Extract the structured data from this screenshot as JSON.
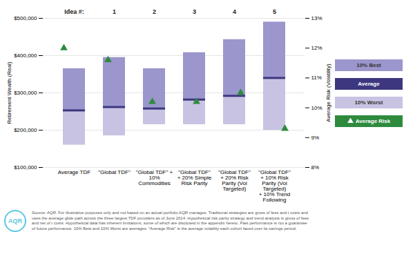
{
  "chart_data": {
    "type": "range_bar",
    "categories": [
      "Average TDF",
      "\"Global TDF\"",
      "\"Global TDF\" +\n10%\nCommodities",
      "\"Global TDF\"\n+ 20% Simple\nRisk Parity",
      "\"Global TDF\"\n+ 20% Risk\nParity (Vol\nTargeted)",
      "\"Global TDF\"\n+ 10% Risk\nParity (Vol\nTargeted)\n+ 10% Trend\nFollowing"
    ],
    "series": [
      {
        "name": "10% Worst",
        "color": "#c8c3e2",
        "values": [
          160000,
          185000,
          215000,
          215000,
          215000,
          200000
        ]
      },
      {
        "name": "Average",
        "color": "#3d3780",
        "values": [
          253000,
          262000,
          258000,
          282000,
          292000,
          340000
        ]
      },
      {
        "name": "10% Best",
        "color": "#9b96cc",
        "values": [
          365000,
          395000,
          365000,
          408000,
          443000,
          490000
        ]
      },
      {
        "name": "Average Risk",
        "axis": "y2",
        "type": "scatter",
        "marker": "triangle",
        "color": "#2e8b3e",
        "values": [
          12.0,
          11.6,
          10.2,
          10.2,
          10.5,
          9.3
        ]
      }
    ],
    "idea_numbers": [
      null,
      1,
      2,
      3,
      4,
      5
    ],
    "ylabel": "Retirement Wealth (Real)",
    "y2label": "Average Risk (Volatility)",
    "ylim": [
      100000,
      500000
    ],
    "yticks": [
      {
        "value": 100000,
        "label": "$100,000"
      },
      {
        "value": 200000,
        "label": "$200,000"
      },
      {
        "value": 300000,
        "label": "$300,000"
      },
      {
        "value": 400000,
        "label": "$400,000"
      },
      {
        "value": 500000,
        "label": "$500,000"
      }
    ],
    "y2lim": [
      8.0,
      13.0
    ],
    "y2ticks": [
      {
        "value": 8,
        "label": "8%"
      },
      {
        "value": 9,
        "label": "9%"
      },
      {
        "value": 10,
        "label": "10%"
      },
      {
        "value": 11,
        "label": "11%"
      },
      {
        "value": 12,
        "label": "12%"
      },
      {
        "value": 13,
        "label": "13%"
      }
    ],
    "grid": true,
    "legend": "right",
    "annotations": [
      "Idea #:",
      "AQR"
    ],
    "source": "Source: AQR. For illustrative purposes only and not based on an actual portfolio AQR manages.  Traditional strategies are gross of fees and t costs and\nuses the average glide path across the three largest TDF providers as of June 2014. Hypothetical risk parity strategy and trend analysis is gross of fees\nand net of t costs.  Hypothetical data has inherent limitations, some of which are disclosed in the appendix hereto. Past performance is not a guarantee\nof future performance. 10% Best and 10% Worst are averages. \"Average Risk\" is the average volatility each cohort faced over its savings period."
  }
}
